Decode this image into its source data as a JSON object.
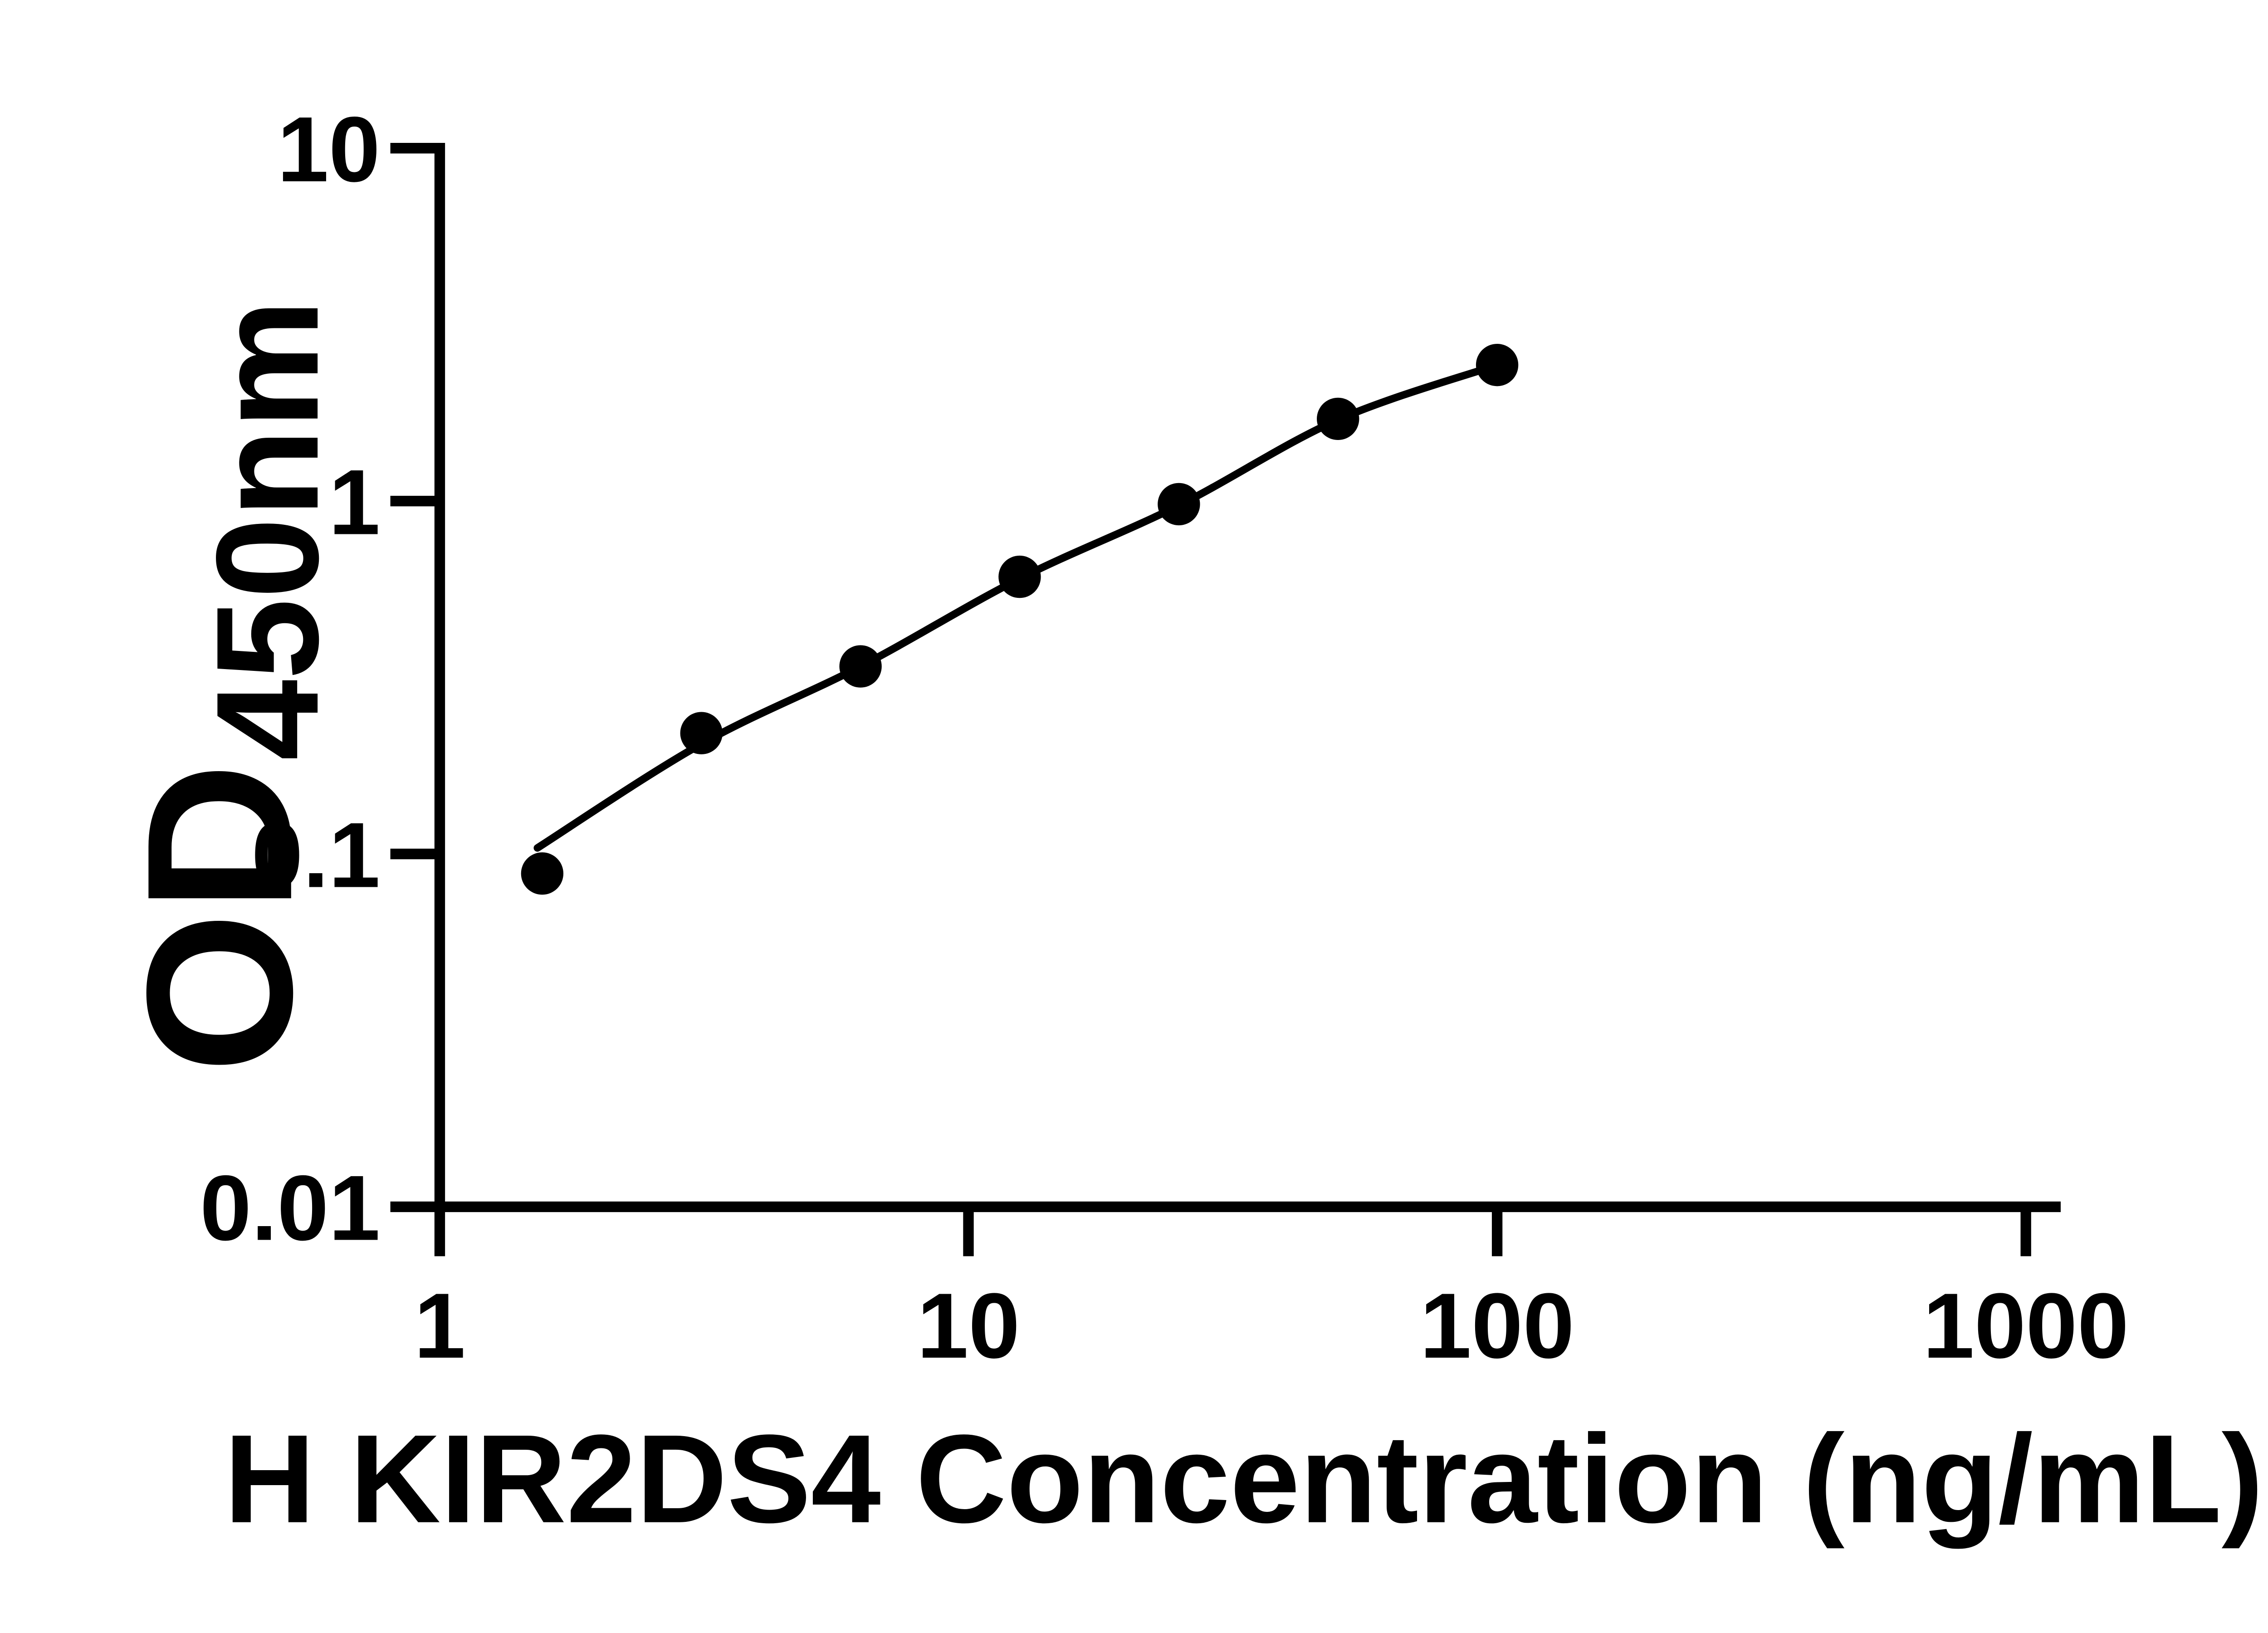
{
  "chart_data": {
    "type": "scatter",
    "title": "",
    "xlabel": "H KIR2DS4 Concentration (ng/mL)",
    "ylabel_main": "OD",
    "ylabel_sub": "450nm",
    "xscale": "log10",
    "yscale": "log10",
    "xlim": [
      1,
      1000
    ],
    "ylim": [
      0.01,
      10
    ],
    "x_ticks": [
      "1",
      "10",
      "100",
      "1000"
    ],
    "x_tick_values": [
      1,
      10,
      100,
      1000
    ],
    "y_ticks": [
      "10",
      "1",
      "0.1",
      "0.01"
    ],
    "y_tick_values": [
      10,
      1,
      0.1,
      0.01
    ],
    "grid": false,
    "legend": "none",
    "marker_shape": "circle",
    "marker_color": "#000000",
    "line_color": "#000000",
    "axis_color": "#000000",
    "background_color": "#ffffff",
    "points": [
      {
        "x": 1.5625,
        "y": 0.088
      },
      {
        "x": 3.125,
        "y": 0.22
      },
      {
        "x": 6.25,
        "y": 0.34
      },
      {
        "x": 12.5,
        "y": 0.61
      },
      {
        "x": 25,
        "y": 0.98
      },
      {
        "x": 50,
        "y": 1.71
      },
      {
        "x": 100,
        "y": 2.43
      }
    ],
    "fit_curve": [
      {
        "x": 1.53,
        "y": 0.104
      },
      {
        "x": 3.125,
        "y": 0.205
      },
      {
        "x": 6.25,
        "y": 0.34
      },
      {
        "x": 12.5,
        "y": 0.603
      },
      {
        "x": 25,
        "y": 0.972
      },
      {
        "x": 50,
        "y": 1.7
      },
      {
        "x": 100,
        "y": 2.43
      }
    ]
  }
}
